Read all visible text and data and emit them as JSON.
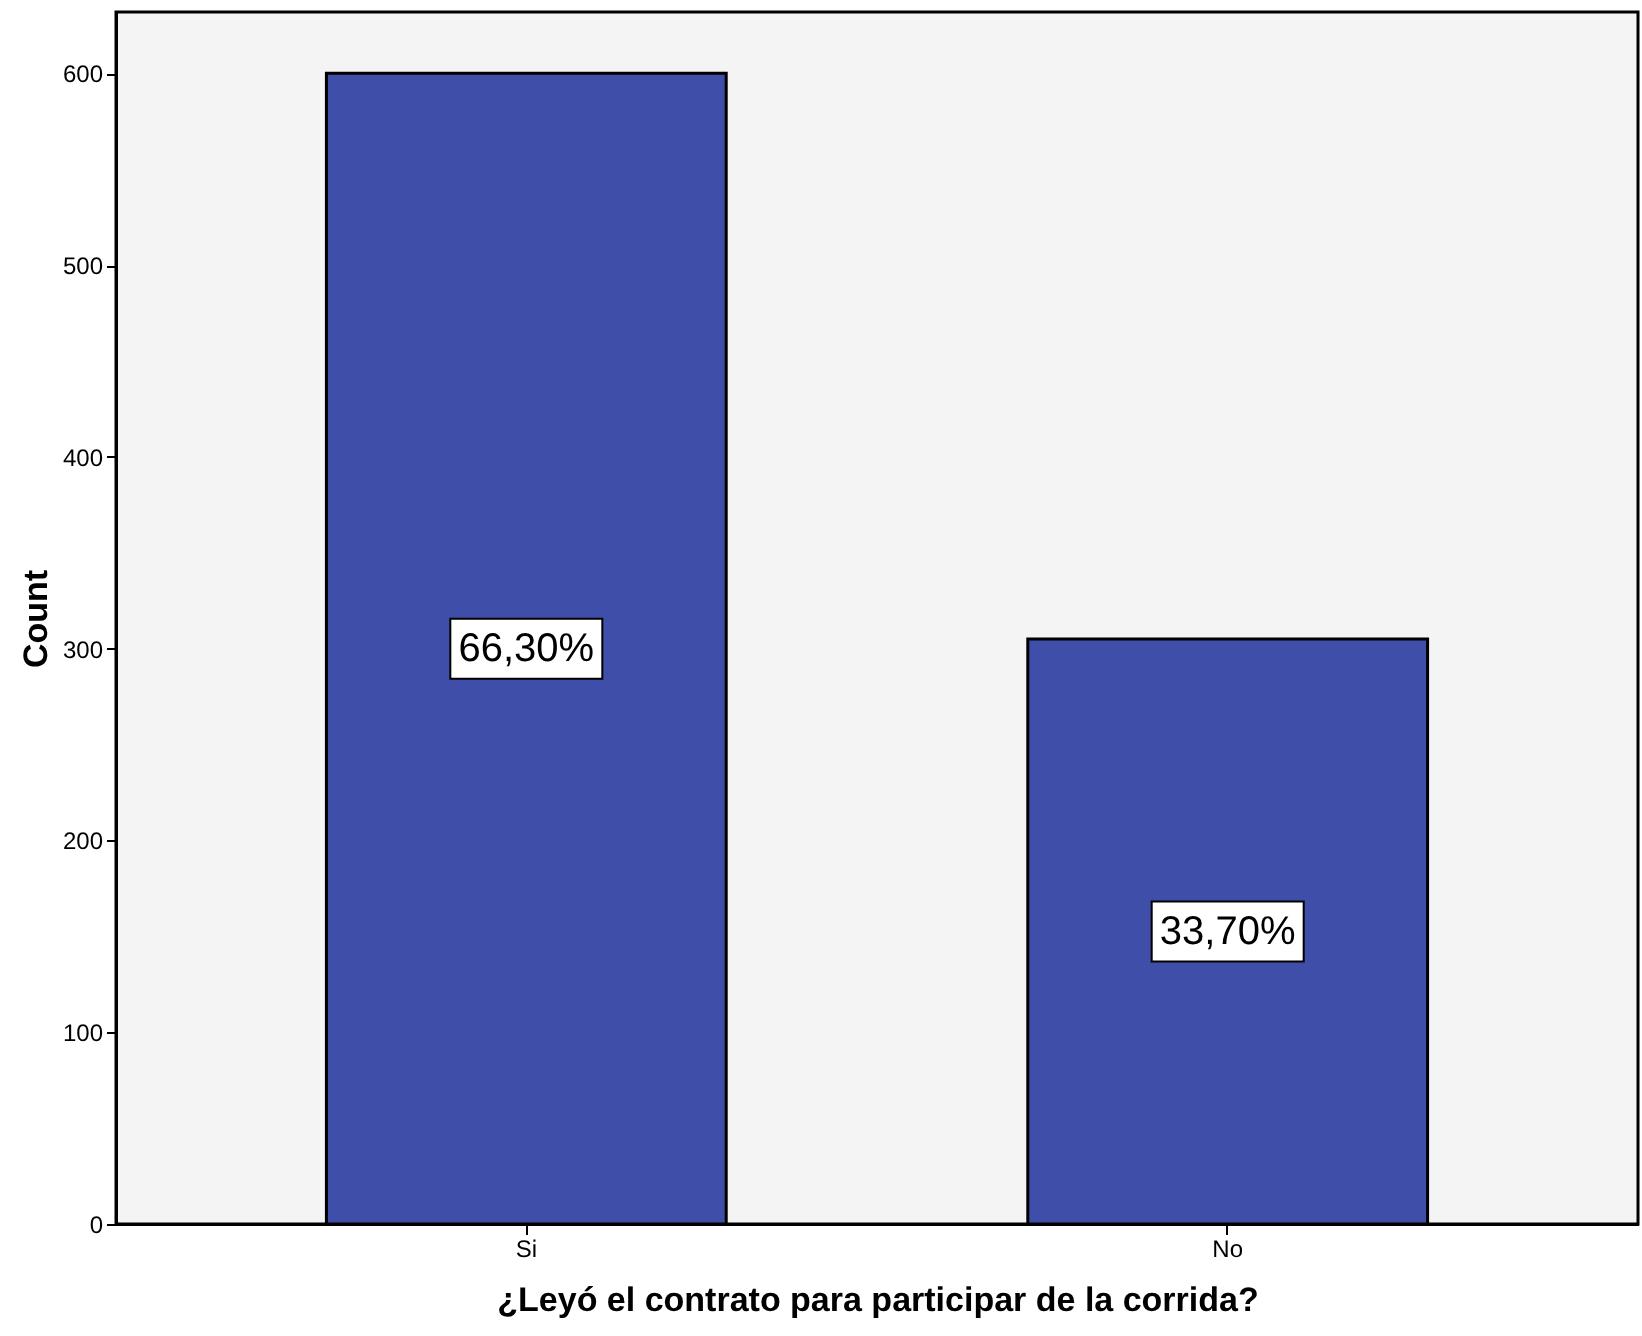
{
  "chart_data": {
    "type": "bar",
    "xlabel": "¿Leyó el contrato para participar de la corrida?",
    "ylabel": "Count",
    "categories": [
      "Si",
      "No"
    ],
    "values": [
      600,
      305
    ],
    "color": "#3f4ea8",
    "annotations": [
      "66,30%",
      "33,70%"
    ],
    "ylim": [
      0,
      632
    ],
    "yticks": [
      0,
      100,
      200,
      300,
      400,
      500,
      600
    ],
    "grid": false
  }
}
